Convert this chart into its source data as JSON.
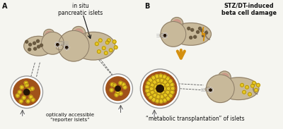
{
  "background_color": "#f5f5f0",
  "mouse_color": "#c8b99a",
  "mouse_outline": "#8a7a65",
  "iris_color": "#a0521a",
  "pupil_color": "#251505",
  "islet_yellow": "#e8c820",
  "islet_outline": "#a08010",
  "islet_dark_dot": "#6a5a40",
  "arrow_orange": "#d49010",
  "text_color": "#111111",
  "ear_inner": "#cc9988",
  "whisker_color": "#888888",
  "label_A": "A",
  "label_B": "B",
  "text_in_situ": "in situ\npancreatic islets",
  "text_reporter": "optically accessible\n“reporter islets”",
  "text_STZ": "STZ/DT-induced\nbeta cell damage",
  "text_transplant": "“metabolic transplantation” of islets"
}
